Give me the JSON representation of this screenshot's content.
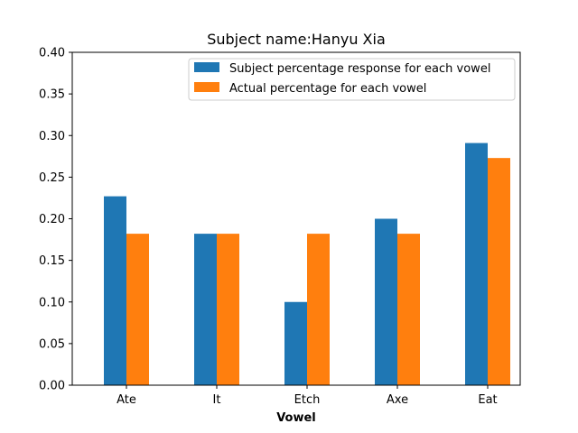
{
  "chart_data": {
    "type": "bar",
    "title": "Subject name:Hanyu Xia",
    "xlabel": "Vowel",
    "ylabel": "",
    "categories": [
      "Ate",
      "It",
      "Etch",
      "Axe",
      "Eat"
    ],
    "series": [
      {
        "name": "Subject percentage response for each vowel",
        "values": [
          0.227,
          0.182,
          0.1,
          0.2,
          0.291
        ],
        "color": "#1f77b4"
      },
      {
        "name": "Actual percentage for each vowel",
        "values": [
          0.182,
          0.182,
          0.182,
          0.182,
          0.273
        ],
        "color": "#ff7f0e"
      }
    ],
    "ylim": [
      0,
      0.4
    ],
    "yticks": [
      "0.00",
      "0.05",
      "0.10",
      "0.15",
      "0.20",
      "0.25",
      "0.30",
      "0.35",
      "0.40"
    ],
    "grid": false,
    "legend_position": "top-right"
  }
}
